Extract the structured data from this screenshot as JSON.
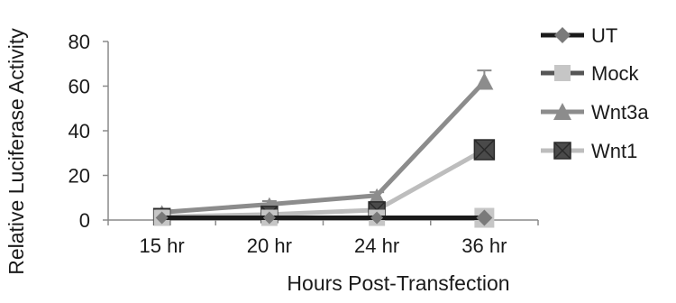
{
  "chart_data": {
    "type": "line",
    "title": "",
    "xlabel": "Hours Post-Transfection",
    "ylabel": "Relative Luciferase Activity",
    "categories": [
      "15 hr",
      "20 hr",
      "24 hr",
      "36 hr"
    ],
    "ylim": [
      0,
      80
    ],
    "yticks": [
      0,
      20,
      40,
      60,
      80
    ],
    "grid": false,
    "legend_position": "right",
    "series": [
      {
        "name": "UT",
        "values": [
          1,
          1,
          1,
          1
        ],
        "color": "#1a1a1a",
        "marker": "diamond",
        "marker_color": "#7a7a7a"
      },
      {
        "name": "Mock",
        "values": [
          1,
          1,
          1,
          1
        ],
        "color": "#555555",
        "marker": "square",
        "marker_color": "#c6c6c6"
      },
      {
        "name": "Wnt3a",
        "values": [
          3.5,
          7,
          11,
          62
        ],
        "error": [
          0.5,
          1.5,
          1.5,
          5
        ],
        "color": "#8c8c8c",
        "marker": "triangle",
        "marker_color": "#8c8c8c"
      },
      {
        "name": "Wnt1",
        "values": [
          1.5,
          2.5,
          4.5,
          31.5
        ],
        "color": "#bdbdbd",
        "marker": "x-square",
        "marker_color": "#4a4a4a"
      }
    ]
  }
}
